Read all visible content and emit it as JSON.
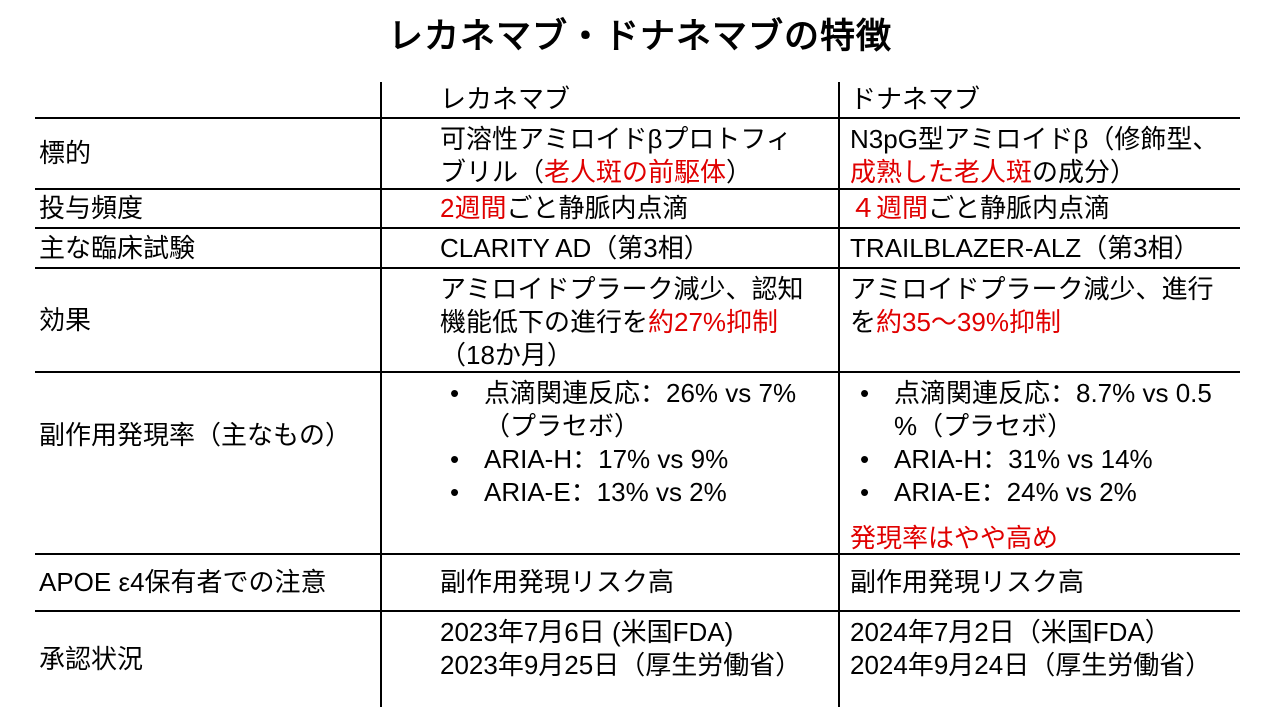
{
  "title": "レカネマブ・ドナネマブの特徴",
  "colors": {
    "accent_red": "#e00000",
    "text": "#000000",
    "border": "#000000"
  },
  "table": {
    "header": {
      "col1": "",
      "col2": "レカネマブ",
      "col3": "ドナネマブ"
    },
    "rows": [
      {
        "label": "標的",
        "lecanemab": [
          {
            "lines": [
              [
                "可溶性アミロイドβプロトフィ"
              ],
              [
                "ブリル（",
                {
                  "t": "老人斑の前駆体",
                  "red": true
                },
                "）"
              ]
            ]
          }
        ],
        "donanemab": [
          {
            "lines": [
              [
                "N3pG型アミロイドβ（修飾型、"
              ],
              [
                {
                  "t": "成熟した老人斑",
                  "red": true
                },
                "の成分）"
              ]
            ]
          }
        ]
      },
      {
        "label": "投与頻度",
        "lecanemab": [
          {
            "lines": [
              [
                {
                  "t": "2週間",
                  "red": true
                },
                "ごと静脈内点滴"
              ]
            ]
          }
        ],
        "donanemab": [
          {
            "lines": [
              [
                {
                  "t": "４週間",
                  "red": true
                },
                "ごと静脈内点滴"
              ]
            ]
          }
        ]
      },
      {
        "label": "主な臨床試験",
        "lecanemab": [
          {
            "lines": [
              [
                "CLARITY AD（第3相）"
              ]
            ]
          }
        ],
        "donanemab": [
          {
            "lines": [
              [
                "TRAILBLAZER-ALZ（第3相）"
              ]
            ]
          }
        ]
      },
      {
        "label": "効果",
        "lecanemab": [
          {
            "lines": [
              [
                "アミロイドプラーク減少、認知"
              ],
              [
                "機能低下の進行を",
                {
                  "t": "約27%抑制",
                  "red": true
                }
              ],
              [
                "（18か月）"
              ]
            ]
          }
        ],
        "donanemab": [
          {
            "lines": [
              [
                "アミロイドプラーク減少、進行"
              ],
              [
                "を",
                {
                  "t": "約35～39%抑制",
                  "red": true
                }
              ]
            ]
          }
        ]
      },
      {
        "label": "副作用発現率（主なもの）",
        "lecanemab": [
          {
            "bullets": [
              {
                "lines": [
                  [
                    "点滴関連反応：26% vs 7%"
                  ],
                  [
                    "（プラセボ）"
                  ]
                ]
              },
              {
                "lines": [
                  [
                    "ARIA-H：17% vs 9%"
                  ]
                ]
              },
              {
                "lines": [
                  [
                    "ARIA-E：13% vs 2%"
                  ]
                ]
              }
            ]
          }
        ],
        "donanemab": [
          {
            "bullets": [
              {
                "lines": [
                  [
                    "点滴関連反応：8.7% vs 0.5"
                  ],
                  [
                    "%（プラセボ）"
                  ]
                ]
              },
              {
                "lines": [
                  [
                    "ARIA-H：31% vs 14%"
                  ]
                ]
              },
              {
                "lines": [
                  [
                    "ARIA-E：24% vs 2%"
                  ]
                ]
              }
            ]
          },
          {
            "gap": true,
            "lines": [
              [
                {
                  "t": "発現率はやや高め",
                  "red": true
                }
              ]
            ]
          }
        ]
      },
      {
        "label": "APOE ε4保有者での注意",
        "lecanemab": [
          {
            "lines": [
              [
                "副作用発現リスク高"
              ]
            ]
          }
        ],
        "donanemab": [
          {
            "lines": [
              [
                "副作用発現リスク高"
              ]
            ]
          }
        ]
      },
      {
        "label": "承認状況",
        "lecanemab": [
          {
            "lines": [
              [
                "2023年7月6日 (米国FDA)"
              ],
              [
                "2023年9月25日（厚生労働省）"
              ]
            ]
          }
        ],
        "donanemab": [
          {
            "lines": [
              [
                "2024年7月2日（米国FDA）"
              ],
              [
                "2024年9月24日（厚生労働省）"
              ]
            ]
          }
        ]
      }
    ]
  }
}
